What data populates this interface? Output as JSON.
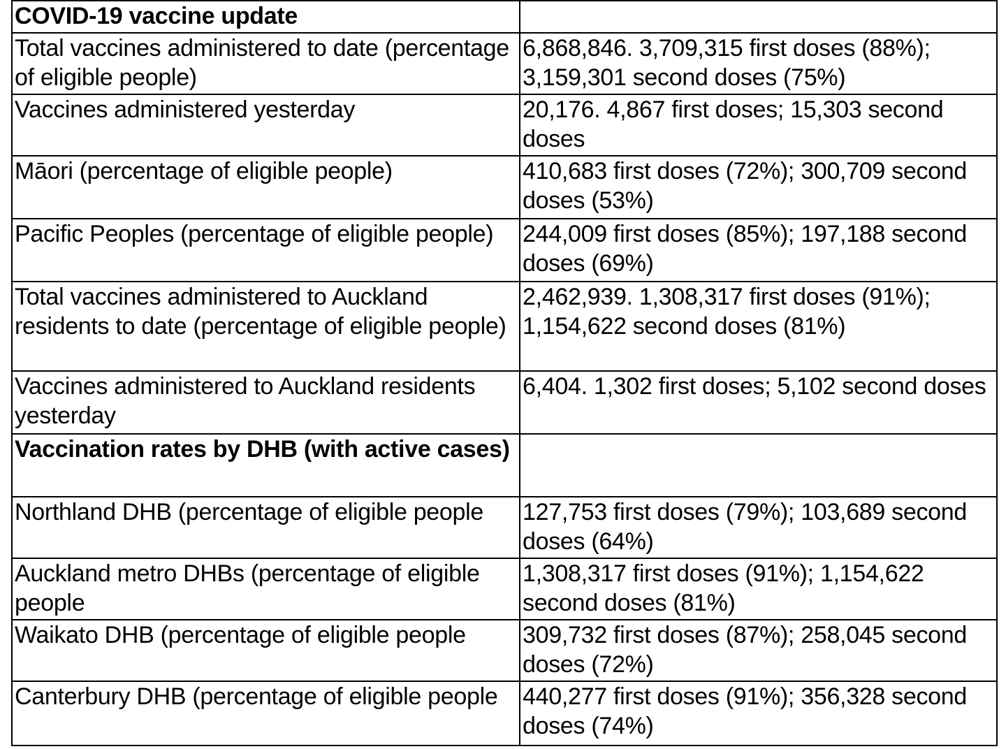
{
  "table": {
    "rows": [
      {
        "label": "COVID-19 vaccine update",
        "value": "",
        "heading": true
      },
      {
        "label": "Total vaccines administered to date  (percentage of eligible people)",
        "value": "6,868,846. 3,709,315 first doses (88%); 3,159,301 second doses (75%)",
        "heading": false
      },
      {
        "label": "Vaccines administered yesterday",
        "value": "20,176. 4,867 first doses; 15,303 second doses",
        "heading": false
      },
      {
        "label": "Māori (percentage of eligible people)",
        "value": "410,683 first doses (72%); 300,709 second doses (53%)",
        "heading": false
      },
      {
        "label": "Pacific Peoples (percentage of eligible people)",
        "value": "244,009 first doses (85%); 197,188 second doses (69%)",
        "heading": false
      },
      {
        "label": "Total vaccines administered to Auckland residents to date (percentage of eligible people)",
        "value": "2,462,939. 1,308,317 first doses (91%); 1,154,622 second doses (81%)",
        "heading": false
      },
      {
        "label": "Vaccines administered to Auckland residents yesterday",
        "value": "6,404. 1,302 first doses; 5,102 second doses",
        "heading": false
      },
      {
        "label": "Vaccination rates by DHB (with active cases)",
        "value": "",
        "heading": true
      },
      {
        "label": "Northland DHB (percentage of eligible people",
        "value": "127,753 first doses (79%); 103,689 second doses (64%)",
        "heading": false
      },
      {
        "label": "Auckland metro DHBs (percentage of eligible people",
        "value": "1,308,317 first doses (91%); 1,154,622 second doses (81%)",
        "heading": false
      },
      {
        "label": "Waikato DHB (percentage of eligible people",
        "value": "309,732 first doses (87%); 258,045 second doses (72%)",
        "heading": false
      },
      {
        "label": "Canterbury DHB (percentage of eligible people",
        "value": "440,277 first doses (91%); 356,328 second doses (74%)",
        "heading": false
      }
    ]
  }
}
